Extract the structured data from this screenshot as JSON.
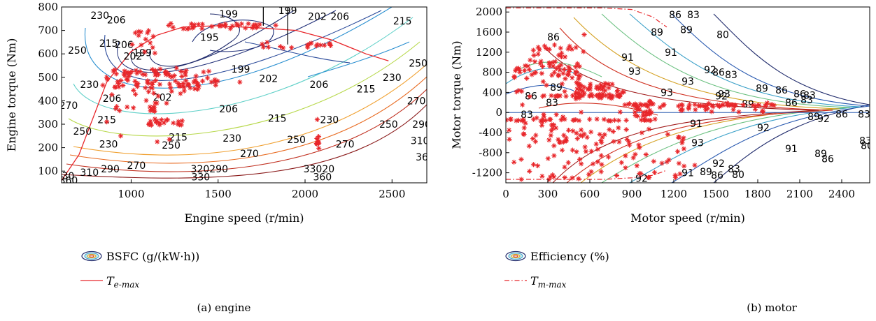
{
  "chart_data": [
    {
      "type": "contour",
      "caption": "(a)  engine",
      "xlabel": "Engine speed (r/min)",
      "ylabel": "Engine torque (Nm)",
      "xlim": [
        600,
        2700
      ],
      "ylim": [
        50,
        800
      ],
      "xticks": [
        1000,
        1500,
        2000,
        2500
      ],
      "yticks": [
        100,
        200,
        300,
        400,
        500,
        600,
        700,
        800
      ],
      "legend": [
        {
          "name": "BSFC (g/(kW·h))",
          "kind": "contour-icon"
        },
        {
          "name_main": "T",
          "name_sub": "e-max",
          "kind": "solid-line",
          "color": "#e8262a"
        }
      ],
      "contour_colors": {
        "199": "#1f2a6b",
        "202": "#1f2a6b",
        "206": "#23327a",
        "215": "#2a4a9a",
        "230": "#2a8fd0",
        "250": "#5fd0c8",
        "270": "#b7d84a",
        "290": "#f0a030",
        "310": "#e86a20",
        "330": "#c03020",
        "360": "#8a1a1a"
      },
      "contour_labels": [
        {
          "text": "230",
          "x": 820,
          "y": 765
        },
        {
          "text": "206",
          "x": 915,
          "y": 745
        },
        {
          "text": "250",
          "x": 690,
          "y": 615
        },
        {
          "text": "215",
          "x": 870,
          "y": 645
        },
        {
          "text": "206",
          "x": 960,
          "y": 640
        },
        {
          "text": "199",
          "x": 1065,
          "y": 605
        },
        {
          "text": "202",
          "x": 1010,
          "y": 590
        },
        {
          "text": "195",
          "x": 1450,
          "y": 670
        },
        {
          "text": "199",
          "x": 1560,
          "y": 770
        },
        {
          "text": "199",
          "x": 1900,
          "y": 785
        },
        {
          "text": "202",
          "x": 2070,
          "y": 760
        },
        {
          "text": "206",
          "x": 2200,
          "y": 760
        },
        {
          "text": "215",
          "x": 2560,
          "y": 740
        },
        {
          "text": "199",
          "x": 1630,
          "y": 535
        },
        {
          "text": "202",
          "x": 1790,
          "y": 495
        },
        {
          "text": "206",
          "x": 2080,
          "y": 470
        },
        {
          "text": "215",
          "x": 2350,
          "y": 450
        },
        {
          "text": "230",
          "x": 2500,
          "y": 500
        },
        {
          "text": "250",
          "x": 2650,
          "y": 560
        },
        {
          "text": "230",
          "x": 760,
          "y": 470
        },
        {
          "text": "202",
          "x": 1180,
          "y": 415
        },
        {
          "text": "206",
          "x": 890,
          "y": 410
        },
        {
          "text": "206",
          "x": 1560,
          "y": 365
        },
        {
          "text": "215",
          "x": 1840,
          "y": 325
        },
        {
          "text": "230",
          "x": 2140,
          "y": 320
        },
        {
          "text": "270",
          "x": 640,
          "y": 380
        },
        {
          "text": "215",
          "x": 860,
          "y": 320
        },
        {
          "text": "270",
          "x": 2640,
          "y": 400
        },
        {
          "text": "250",
          "x": 2480,
          "y": 300
        },
        {
          "text": "290",
          "x": 2670,
          "y": 300
        },
        {
          "text": "250",
          "x": 720,
          "y": 270
        },
        {
          "text": "215",
          "x": 1270,
          "y": 245
        },
        {
          "text": "230",
          "x": 1580,
          "y": 240
        },
        {
          "text": "250",
          "x": 1950,
          "y": 235
        },
        {
          "text": "270",
          "x": 2230,
          "y": 215
        },
        {
          "text": "230",
          "x": 870,
          "y": 215
        },
        {
          "text": "250",
          "x": 1230,
          "y": 210
        },
        {
          "text": "270",
          "x": 1680,
          "y": 175
        },
        {
          "text": "310",
          "x": 2660,
          "y": 230
        },
        {
          "text": "270",
          "x": 1030,
          "y": 125
        },
        {
          "text": "290",
          "x": 880,
          "y": 110
        },
        {
          "text": "320290",
          "x": 1450,
          "y": 110
        },
        {
          "text": "33020",
          "x": 2080,
          "y": 110
        },
        {
          "text": "310",
          "x": 760,
          "y": 95
        },
        {
          "text": "330",
          "x": 1400,
          "y": 75
        },
        {
          "text": "360",
          "x": 2100,
          "y": 75
        },
        {
          "text": "330",
          "x": 620,
          "y": 80
        },
        {
          "text": "360",
          "x": 640,
          "y": 60
        },
        {
          "text": "360",
          "x": 2690,
          "y": 160
        }
      ],
      "clusters": [
        {
          "x": [
            850,
            1500
          ],
          "y": [
            430,
            540
          ],
          "n": 55
        },
        {
          "x": [
            830,
            1650
          ],
          "y": [
            455,
            490
          ],
          "n": 28
        },
        {
          "x": [
            850,
            1350
          ],
          "y": [
            500,
            530
          ],
          "n": 22
        },
        {
          "x": [
            1000,
            1140
          ],
          "y": [
            600,
            700
          ],
          "n": 14
        },
        {
          "x": [
            1200,
            1850
          ],
          "y": [
            705,
            730
          ],
          "n": 34
        },
        {
          "x": [
            1740,
            2150
          ],
          "y": [
            625,
            650
          ],
          "n": 18
        },
        {
          "x": [
            880,
            1230
          ],
          "y": [
            350,
            440
          ],
          "n": 14
        },
        {
          "x": [
            1100,
            1310
          ],
          "y": [
            295,
            320
          ],
          "n": 20
        },
        {
          "x": [
            1110,
            1160
          ],
          "y": [
            320,
            400
          ],
          "n": 8
        },
        {
          "x": [
            2060,
            2080
          ],
          "y": [
            190,
            250
          ],
          "n": 10
        }
      ],
      "single_points": [
        [
          940,
          250
        ],
        [
          1150,
          225
        ],
        [
          1220,
          235
        ],
        [
          860,
          310
        ],
        [
          2070,
          320
        ]
      ]
    },
    {
      "type": "contour",
      "caption": "(b)  motor",
      "xlabel": "Motor speed (r/min)",
      "ylabel": "Motor torque (Nm)",
      "xlim": [
        0,
        2600
      ],
      "ylim": [
        -1400,
        2100
      ],
      "xticks": [
        0,
        300,
        600,
        900,
        1200,
        1500,
        1800,
        2100,
        2400
      ],
      "yticks": [
        -1200,
        -800,
        -400,
        0,
        400,
        800,
        1200,
        1600,
        2000
      ],
      "legend": [
        {
          "name": "Efficiency (%)",
          "kind": "contour-icon"
        },
        {
          "name_main": "T",
          "name_sub": "m-max",
          "kind": "dashdot-line",
          "color": "#e8262a"
        }
      ],
      "contour_colors": {
        "80": "#1f2a6b",
        "83": "#2a5ab0",
        "86": "#3aa0c8",
        "89": "#6ac080",
        "91": "#d4a020",
        "92": "#d03020",
        "93": "#a01818",
        "94": "#6a1010"
      },
      "contour_labels": [
        {
          "text": "86",
          "x": 1210,
          "y": 1950
        },
        {
          "text": "83",
          "x": 1340,
          "y": 1950
        },
        {
          "text": "80",
          "x": 1550,
          "y": 1550
        },
        {
          "text": "89",
          "x": 1080,
          "y": 1600
        },
        {
          "text": "89",
          "x": 1290,
          "y": 1650
        },
        {
          "text": "86",
          "x": 340,
          "y": 1500
        },
        {
          "text": "91",
          "x": 1180,
          "y": 1200
        },
        {
          "text": "91",
          "x": 870,
          "y": 1100
        },
        {
          "text": "93",
          "x": 920,
          "y": 820
        },
        {
          "text": "92",
          "x": 1460,
          "y": 850
        },
        {
          "text": "86",
          "x": 1520,
          "y": 800
        },
        {
          "text": "83",
          "x": 1610,
          "y": 750
        },
        {
          "text": "93",
          "x": 1300,
          "y": 620
        },
        {
          "text": "89",
          "x": 360,
          "y": 500
        },
        {
          "text": "86",
          "x": 180,
          "y": 330
        },
        {
          "text": "83",
          "x": 330,
          "y": 200
        },
        {
          "text": "93",
          "x": 1150,
          "y": 400
        },
        {
          "text": "93",
          "x": 1560,
          "y": 370
        },
        {
          "text": "92",
          "x": 1540,
          "y": 330
        },
        {
          "text": "89",
          "x": 1830,
          "y": 480
        },
        {
          "text": "86",
          "x": 1970,
          "y": 450
        },
        {
          "text": "83",
          "x": 2170,
          "y": 340
        },
        {
          "text": "86",
          "x": 2100,
          "y": 370
        },
        {
          "text": "83",
          "x": 150,
          "y": -40
        },
        {
          "text": "89",
          "x": 1730,
          "y": 170
        },
        {
          "text": "86",
          "x": 2040,
          "y": 200
        },
        {
          "text": "83",
          "x": 2150,
          "y": 250
        },
        {
          "text": "89",
          "x": 2200,
          "y": -80
        },
        {
          "text": "86",
          "x": 2400,
          "y": -30
        },
        {
          "text": "83",
          "x": 2560,
          "y": -30
        },
        {
          "text": "92",
          "x": 2270,
          "y": -120
        },
        {
          "text": "91",
          "x": 1360,
          "y": -220
        },
        {
          "text": "92",
          "x": 1840,
          "y": -300
        },
        {
          "text": "93",
          "x": 1370,
          "y": -600
        },
        {
          "text": "91",
          "x": 2040,
          "y": -720
        },
        {
          "text": "92",
          "x": 1520,
          "y": -1010
        },
        {
          "text": "89",
          "x": 2250,
          "y": -820
        },
        {
          "text": "86",
          "x": 2300,
          "y": -920
        },
        {
          "text": "92",
          "x": 970,
          "y": -1310
        },
        {
          "text": "91",
          "x": 1300,
          "y": -1200
        },
        {
          "text": "89",
          "x": 1430,
          "y": -1180
        },
        {
          "text": "86",
          "x": 1510,
          "y": -1250
        },
        {
          "text": "83",
          "x": 1630,
          "y": -1120
        },
        {
          "text": "80",
          "x": 1660,
          "y": -1230
        },
        {
          "text": "83",
          "x": 2570,
          "y": -560
        },
        {
          "text": "80",
          "x": 2580,
          "y": -660
        }
      ],
      "clusters": [
        {
          "x": [
            20,
            560
          ],
          "y": [
            -1350,
            1300
          ],
          "n": 90
        },
        {
          "x": [
            20,
            560
          ],
          "y": [
            650,
            1000
          ],
          "n": 28
        },
        {
          "x": [
            200,
            480
          ],
          "y": [
            900,
            1400
          ],
          "n": 18
        },
        {
          "x": [
            500,
            850
          ],
          "y": [
            280,
            600
          ],
          "n": 55
        },
        {
          "x": [
            250,
            850
          ],
          "y": [
            320,
            340
          ],
          "n": 24
        },
        {
          "x": [
            800,
            1900
          ],
          "y": [
            0,
            200
          ],
          "n": 40
        },
        {
          "x": [
            900,
            2000
          ],
          "y": [
            130,
            160
          ],
          "n": 28
        },
        {
          "x": [
            0,
            1100
          ],
          "y": [
            -170,
            -130
          ],
          "n": 38
        },
        {
          "x": [
            550,
            1300
          ],
          "y": [
            -1300,
            -300
          ],
          "n": 55
        },
        {
          "x": [
            920,
            1050
          ],
          "y": [
            -80,
            240
          ],
          "n": 25
        },
        {
          "x": [
            300,
            900
          ],
          "y": [
            -600,
            -300
          ],
          "n": 22
        }
      ],
      "single_points": [
        [
          1350,
          -1050
        ],
        [
          560,
          1550
        ],
        [
          240,
          1250
        ]
      ]
    }
  ]
}
